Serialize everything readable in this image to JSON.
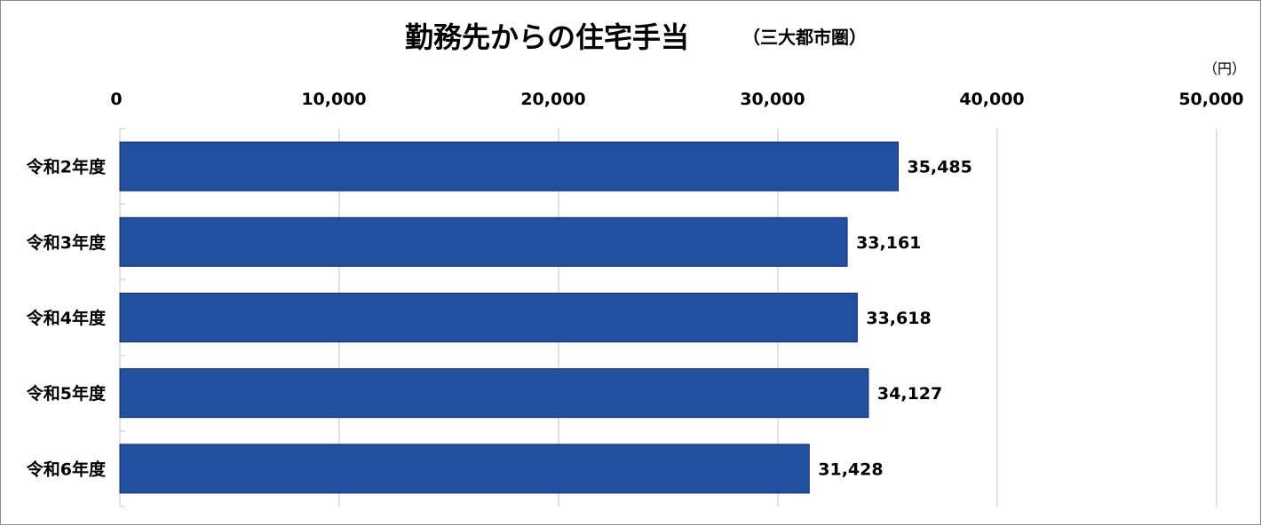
{
  "chart_data": {
    "type": "bar",
    "orientation": "horizontal",
    "title": "勤務先からの住宅手当",
    "subtitle": "（三大都市圏）",
    "unit": "（円）",
    "categories": [
      "令和2年度",
      "令和3年度",
      "令和4年度",
      "令和5年度",
      "令和6年度"
    ],
    "values": [
      35485,
      33161,
      33618,
      34127,
      31428
    ],
    "data_labels": [
      "35,485",
      "33,161",
      "33,618",
      "34,127",
      "31,428"
    ],
    "xlim": [
      0,
      50000
    ],
    "x_ticks": [
      0,
      10000,
      20000,
      30000,
      40000,
      50000
    ],
    "x_tick_labels": [
      "0",
      "10,000",
      "20,000",
      "30,000",
      "40,000",
      "50,000"
    ],
    "axis_position": "top",
    "grid": true,
    "legend": "none",
    "colors": {
      "bar": "#2150a0",
      "bar_border": "#14287a",
      "grid": "#d9d9d9"
    }
  }
}
